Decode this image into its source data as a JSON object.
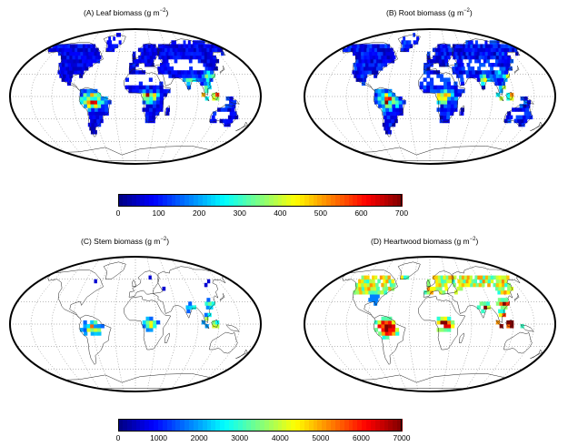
{
  "panels": [
    {
      "id": "A",
      "title_prefix": "(A) Leaf biomass (g m",
      "exponent": "−2",
      "title_suffix": ")"
    },
    {
      "id": "B",
      "title_prefix": "(B) Root biomass (g m",
      "exponent": "−2",
      "title_suffix": ")"
    },
    {
      "id": "C",
      "title_prefix": "(C) Stem biomass (g m",
      "exponent": "−2",
      "title_suffix": ")"
    },
    {
      "id": "D",
      "title_prefix": "(D) Heartwood biomass (g m",
      "exponent": "−2",
      "title_suffix": ")"
    }
  ],
  "colorbars": [
    {
      "ticks": [
        "0",
        "100",
        "200",
        "300",
        "400",
        "500",
        "600",
        "700"
      ],
      "range": [
        0,
        700
      ]
    },
    {
      "ticks": [
        "0",
        "1000",
        "2000",
        "3000",
        "4000",
        "5000",
        "6000",
        "7000"
      ],
      "range": [
        0,
        7000
      ]
    }
  ],
  "colormap": "jet",
  "map_projection": "Robinson-like world map, dotted graticule, black outline",
  "intensity_levels": {
    "A": "low to moderate, blue with yellow-red spots in tropics",
    "B": "moderate, blue with yellow-red in Amazon, Congo, SE Asia",
    "C": "sparse, mostly blue, some cyan-yellow in tropics",
    "D": "high, red in Amazon, Congo, SE Asia, blue-yellow elsewhere"
  }
}
